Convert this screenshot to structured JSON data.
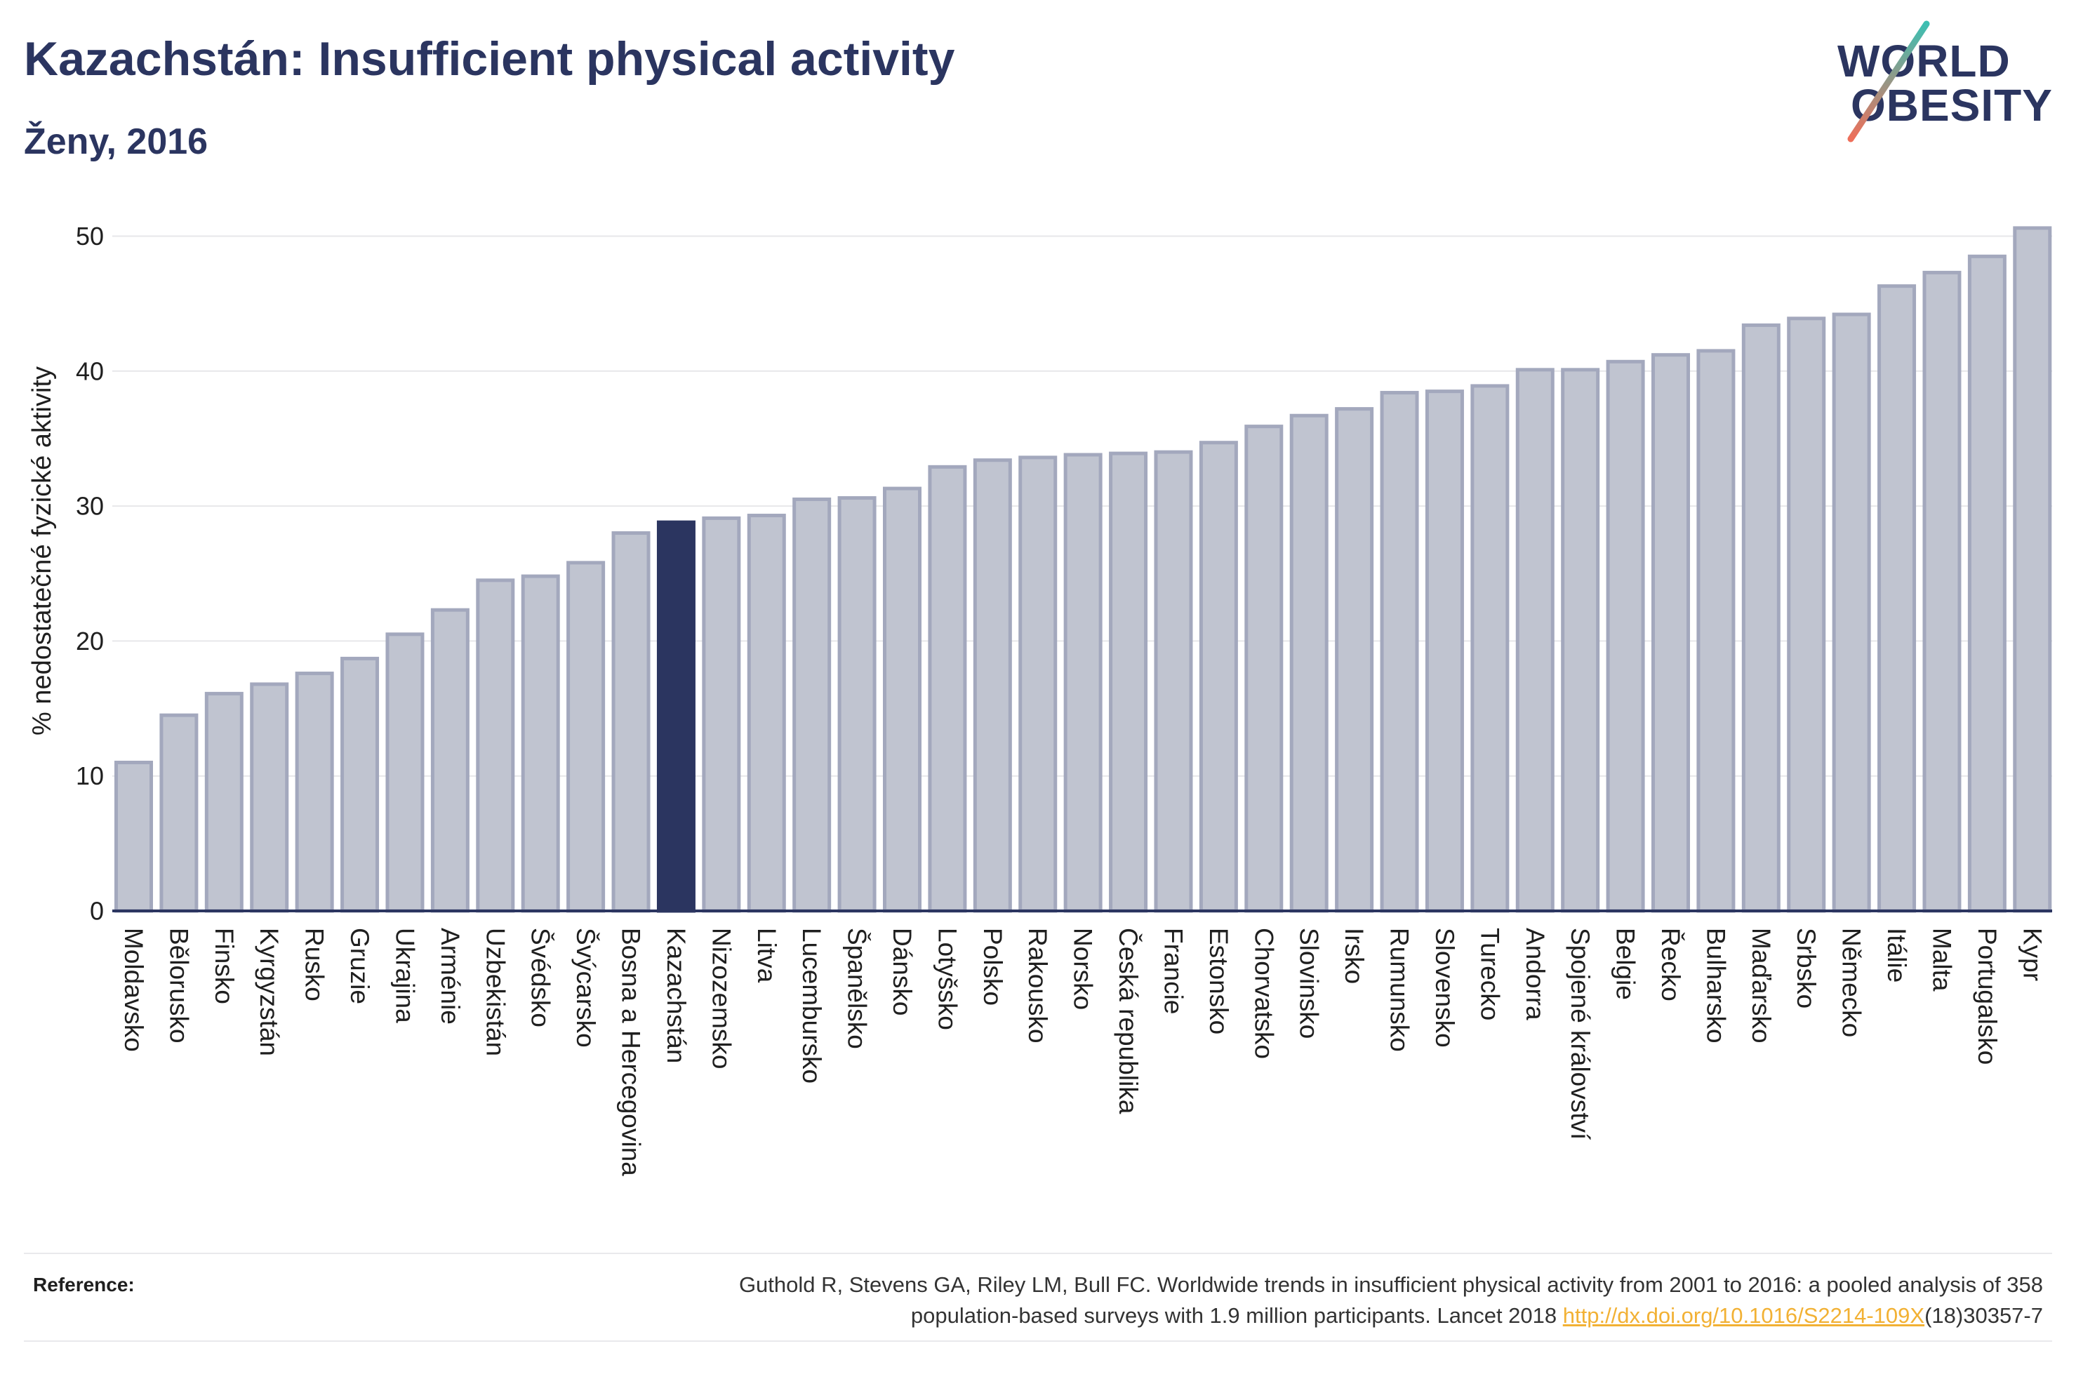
{
  "chart_data": {
    "type": "bar",
    "title": "Kazachstán: Insufficient physical activity",
    "subtitle": "Ženy, 2016",
    "ylabel": "% nedostatečné fyzické aktivity",
    "ylim": [
      0,
      52
    ],
    "yticks": [
      0,
      10,
      20,
      30,
      40,
      50
    ],
    "grid": true,
    "highlight_index": 12,
    "bar_color": "#c0c4d0",
    "bar_border_color": "#a3a8bd",
    "highlight_color": "#2b3560",
    "categories": [
      "Moldavsko",
      "Bělorusko",
      "Finsko",
      "Kyrgyzstán",
      "Rusko",
      "Gruzie",
      "Ukrajina",
      "Arménie",
      "Uzbekistán",
      "Švédsko",
      "Švýcarsko",
      "Bosna a Hercegovina",
      "Kazachstán",
      "Nizozemsko",
      "Litva",
      "Lucembursko",
      "Španělsko",
      "Dánsko",
      "Lotyšsko",
      "Polsko",
      "Rakousko",
      "Norsko",
      "Česká republika",
      "Francie",
      "Estonsko",
      "Chorvatsko",
      "Slovinsko",
      "Irsko",
      "Rumunsko",
      "Slovensko",
      "Turecko",
      "Andorra",
      "Spojené království",
      "Belgie",
      "Řecko",
      "Bulharsko",
      "Maďarsko",
      "Srbsko",
      "Německo",
      "Itálie",
      "Malta",
      "Portugalsko",
      "Kypr"
    ],
    "values": [
      11.0,
      14.5,
      16.1,
      16.8,
      17.6,
      18.7,
      20.5,
      22.3,
      24.5,
      24.8,
      25.8,
      28.0,
      28.8,
      29.1,
      29.3,
      30.5,
      30.6,
      31.3,
      32.9,
      33.4,
      33.6,
      33.8,
      33.9,
      34.0,
      34.7,
      35.9,
      36.7,
      37.2,
      38.4,
      38.5,
      38.9,
      40.1,
      40.1,
      40.7,
      41.2,
      41.5,
      43.4,
      43.9,
      44.2,
      46.3,
      47.3,
      48.5,
      50.6
    ]
  },
  "logo": {
    "line1": "WORLD",
    "line2": "OBESITY",
    "slash_colors": [
      "#3dbfb2",
      "#ee6f5a"
    ]
  },
  "reference": {
    "label": "Reference:",
    "line1": "Guthold R, Stevens GA, Riley LM, Bull FC. Worldwide trends in insufficient physical activity from 2001 to 2016: a pooled analysis of 358",
    "line2_text": "population-based surveys with 1.9 million participants. Lancet 2018 ",
    "doi_link": "http://dx.doi.org/10.1016/S2214-109X",
    "line2_suffix": "(18)30357-7",
    "link_color": "#f2b134"
  }
}
